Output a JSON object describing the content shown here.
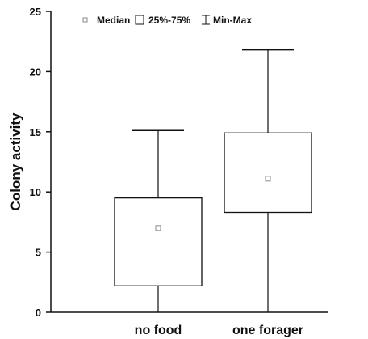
{
  "chart_data": {
    "type": "boxplot",
    "ylabel": "Colony activity",
    "ylim": [
      0,
      25
    ],
    "yticks": [
      0,
      5,
      10,
      15,
      20,
      25
    ],
    "grid": false,
    "legend_position": "top",
    "legend": {
      "median": "Median",
      "box": "25%-75%",
      "whisker": "Min-Max"
    },
    "categories": [
      "no food",
      "one forager"
    ],
    "boxes": [
      {
        "category": "no food",
        "min": 0,
        "q1": 2.2,
        "median": 7.0,
        "q3": 9.5,
        "max": 15.1
      },
      {
        "category": "one forager",
        "min": 0,
        "q1": 8.3,
        "median": 11.1,
        "q3": 14.9,
        "max": 21.8
      }
    ]
  }
}
